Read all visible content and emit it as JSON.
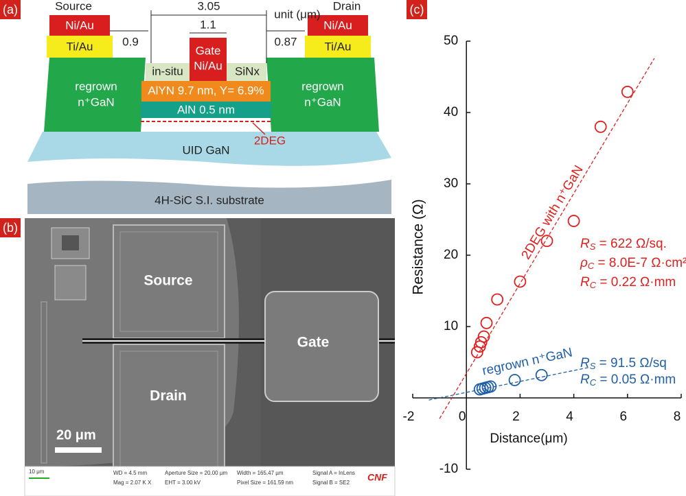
{
  "panel_labels": [
    "(a)",
    "(b)",
    "(c)"
  ],
  "diagram": {
    "source": "Source",
    "source_top": "Ni/Au",
    "source_bottom": "Ti/Au",
    "drain": "Drain",
    "drain_top": "Ni/Au",
    "drain_bottom": "Ti/Au",
    "gate": "Gate",
    "gate_metal": "Ni/Au",
    "dim_total": "3.05",
    "dim_gate": "1.1",
    "dim_left": "0.9",
    "dim_right": "0.87",
    "unit": "unit (μm)",
    "sinx_left": "in-situ",
    "sinx_right": "SiNx",
    "barrier": "AlYN 9.7 nm, Y= 6.9%",
    "interlayer": "AlN 0.5 nm",
    "channel": "2DEG",
    "regrown_left": [
      "regrown",
      "n⁺GaN"
    ],
    "regrown_right": [
      "regrown",
      "n⁺GaN"
    ],
    "buffer": "UID GaN",
    "substrate": "4H-SiC S.I. substrate"
  },
  "sem": {
    "source": "Source",
    "drain": "Drain",
    "gate": "Gate",
    "scale": "20 μm",
    "info": [
      "10 μm",
      "WD = 4.5 mm",
      "Mag = 2.07 K X",
      "Aperture Size = 20.00 µm",
      "EHT = 3.00 kV",
      "Width = 165.47 µm",
      "Pixel Size = 161.59 nm",
      "Signal A = InLens",
      "Signal B = SE2"
    ],
    "brand": "CNF"
  },
  "chart_data": {
    "type": "scatter",
    "xlabel": "Distance(μm)",
    "ylabel": "Resistance (Ω)",
    "xlim": [
      -2,
      8
    ],
    "ylim": [
      -10,
      50
    ],
    "xticks": [
      -2,
      0,
      2,
      4,
      6,
      8
    ],
    "yticks": [
      -10,
      10,
      20,
      30,
      40,
      50
    ],
    "series": [
      {
        "name": "2DEG with n⁺GaN",
        "color": "#e0201e",
        "x": [
          0.4,
          0.5,
          0.55,
          0.65,
          0.75,
          1.15,
          2.0,
          3.0,
          4.0,
          5.0,
          6.0
        ],
        "values": [
          6.4,
          7.2,
          7.8,
          8.6,
          10.5,
          13.8,
          16.3,
          22.0,
          24.8,
          38.0,
          42.9
        ]
      },
      {
        "name": "regrown n⁺GaN",
        "color": "#1f5fa6",
        "x": [
          0.5,
          0.6,
          0.7,
          0.8,
          0.9,
          1.8,
          2.8
        ],
        "values": [
          1.2,
          1.3,
          1.4,
          1.5,
          1.6,
          2.5,
          3.2
        ]
      }
    ],
    "fit_lines": [
      {
        "color": "#e0201e",
        "x": [
          -1.0,
          7.0
        ],
        "values": [
          -2.9,
          47.6
        ]
      },
      {
        "color": "#1f5fa6",
        "x": [
          -1.4,
          4.6
        ],
        "values": [
          -0.3,
          4.3
        ]
      }
    ],
    "annotations": [
      {
        "color": "#e0201e",
        "lines": [
          {
            "symbol": "R",
            "sub": "S",
            "text": " = 622 Ω/sq."
          },
          {
            "symbol": "ρ",
            "sub": "C",
            "text": " = 8.0E-7 Ω·cm²"
          },
          {
            "symbol": "R",
            "sub": "C",
            "text": " = 0.22 Ω·mm"
          }
        ]
      },
      {
        "color": "#1f5fa6",
        "lines": [
          {
            "symbol": "R",
            "sub": "S",
            "text": " = 91.5 Ω/sq"
          },
          {
            "symbol": "R",
            "sub": "C",
            "text": " = 0.05 Ω·mm"
          }
        ]
      }
    ]
  }
}
